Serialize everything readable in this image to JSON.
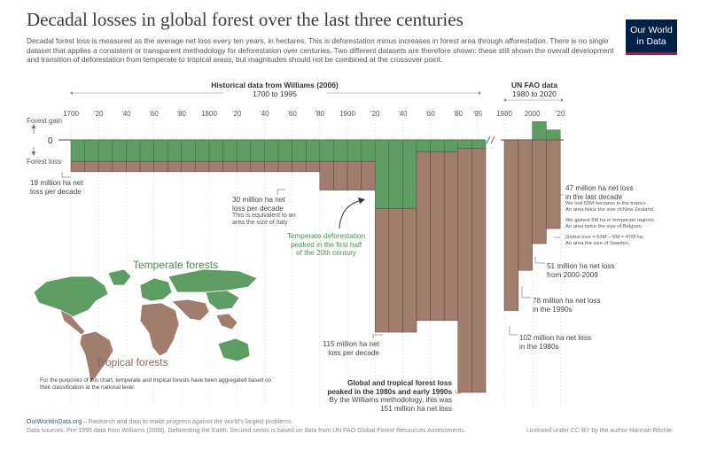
{
  "header": {
    "title": "Decadal losses in global forest over the last three centuries",
    "subtitle": "Decadal forest loss is measured as the average net loss every ten years, in hectares. This is deforestation minus increases in forest area through afforestation. There is no single dataset that applies a consistent or transparent methodology for deforestation over centuries. Two different datasets are therefore shown: these still shown the overall development and transition of deforestation from temperate to tropical areas, but magnitudes should not be combined at the crossover point.",
    "logo": [
      "Our World",
      "in Data"
    ]
  },
  "chart_data": {
    "type": "bar",
    "stacked": true,
    "y_axis": {
      "labels": {
        "gain": "Forest gain",
        "zero": "0",
        "loss": "Forest loss"
      },
      "unit": "million hectares per decade",
      "ylim": [
        -151,
        15
      ]
    },
    "sections": [
      {
        "title": "Historical data from Williams (2006)",
        "range_label": "1700 to 1995",
        "tick_labels": [
          "1700",
          "'20",
          "'40",
          "'60",
          "'80",
          "1800",
          "'20",
          "'40",
          "'60",
          "'80",
          "1900",
          "'20",
          "'40",
          "'60",
          "'80",
          "'95"
        ],
        "x": [
          1700,
          1710,
          1720,
          1730,
          1740,
          1750,
          1760,
          1770,
          1780,
          1790,
          1800,
          1810,
          1820,
          1830,
          1840,
          1850,
          1860,
          1870,
          1880,
          1890,
          1900,
          1910,
          1920,
          1930,
          1940,
          1950,
          1960,
          1970,
          1980,
          1990
        ],
        "series": [
          {
            "name": "Temperate forests",
            "color": "#5e9d62",
            "values": [
              -13,
              -13,
              -13,
              -13,
              -13,
              -13,
              -13,
              -13,
              -13,
              -13,
              -13,
              -13,
              -13,
              -13,
              -13,
              -13,
              -13,
              -13,
              -13,
              -13,
              -13,
              -13,
              -41,
              -41,
              -41,
              -7,
              -7,
              -7,
              -5,
              -5
            ]
          },
          {
            "name": "Tropical forests",
            "color": "#a07d6d",
            "values": [
              -6,
              -6,
              -6,
              -6,
              -6,
              -6,
              -6,
              -6,
              -6,
              -6,
              -6,
              -6,
              -6,
              -6,
              -6,
              -6,
              -6,
              -6,
              -17,
              -17,
              -17,
              -17,
              -74,
              -74,
              -74,
              -101,
              -101,
              -101,
              -146,
              -146
            ]
          }
        ]
      },
      {
        "title": "UN FAO data",
        "range_label": "1980 to 2020",
        "tick_labels": [
          "1980",
          "2000",
          "'20"
        ],
        "x": [
          1980,
          1990,
          2000,
          2010
        ],
        "series": [
          {
            "name": "Temperate forests",
            "color": "#5e9d62",
            "values": [
              0,
              0,
              11,
              6
            ]
          },
          {
            "name": "Tropical forests",
            "color": "#a07d6d",
            "values": [
              -102,
              -78,
              -62,
              -53
            ]
          }
        ]
      }
    ],
    "annotations": {
      "a19": [
        "19 million ha net",
        "loss per decade"
      ],
      "a30": [
        "30 million ha net",
        "loss per decade"
      ],
      "a30b": [
        "This is equivalent to an",
        "area the size of Italy"
      ],
      "temperate_peak": [
        "Temperate deforestation",
        "peaked in the first half",
        "of the 20th century"
      ],
      "a115": [
        "115 million ha net",
        "loss per decade"
      ],
      "global_peak": [
        "Global and tropical forest loss",
        "peaked in the 1980s and early 1990s"
      ],
      "global_peak_b": [
        "By the Williams methodology, this was",
        "151 million ha net loss"
      ],
      "a47": [
        "47 million ha net loss",
        "in the last decade"
      ],
      "a47_tropics": [
        "We lost 53M hectares in the tropics.",
        "An area twice the size of New Zealand."
      ],
      "a47_temperate": [
        "We gained 6M ha in temperate regions.",
        "An area twice the size of Belgium."
      ],
      "a47_global": [
        "Global loss = 53M – 6M = 47M ha.",
        "An area the size of Sweden."
      ],
      "a51": [
        "51 million ha net loss",
        "from 2000-2009"
      ],
      "a78": [
        "78 million ha net loss",
        "in the 1990s"
      ],
      "a102": [
        "102 million ha net loss",
        "in the 1980s"
      ]
    }
  },
  "map": {
    "temperate_label": "Temperate forests",
    "tropical_label": "Tropical forests",
    "note": "For the purposes of this chart, temperate and tropical forests have been aggregated based on their classification at the national level.",
    "colors": {
      "temperate": "#5e9d62",
      "tropical": "#a07d6d"
    }
  },
  "footer": {
    "site": "OurWorldinData.org",
    "tagline": " – Research and data to make progress against the world's largest problems.",
    "sources": "Data sources: Pre-1995 data from Williams (2006). Deforesting the Earth. Second series is based on data from UN FAO Global Forest Resources Assessments.",
    "license": "Licensed under CC-BY by the author Hannah Ritchie."
  }
}
